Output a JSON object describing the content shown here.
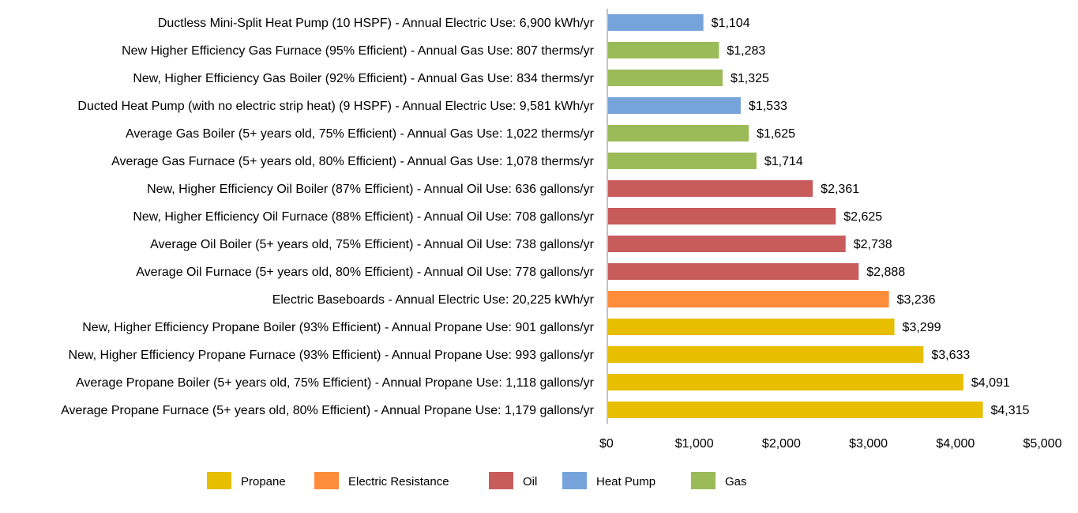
{
  "chart_data": {
    "type": "bar",
    "orientation": "horizontal",
    "title": "",
    "xlabel": "",
    "ylabel": "",
    "xlim": [
      0,
      5000
    ],
    "xticks": [
      0,
      1000,
      2000,
      3000,
      4000,
      5000
    ],
    "xtick_labels": [
      "$0",
      "$1,000",
      "$2,000",
      "$3,000",
      "$4,000",
      "$5,000"
    ],
    "grid": false,
    "legend_position": "bottom",
    "categories": [
      "Ductless Mini-Split Heat Pump (10 HSPF) - Annual Electric Use: 6,900 kWh/yr",
      "New Higher Efficiency Gas Furnace (95% Efficient) - Annual Gas Use: 807 therms/yr",
      "New, Higher Efficiency Gas Boiler (92% Efficient) -  Annual Gas Use: 834 therms/yr",
      "Ducted Heat Pump (with no electric strip heat) (9 HSPF) - Annual Electric Use: 9,581 kWh/yr",
      "Average Gas Boiler (5+ years old, 75% Efficient) -  Annual Gas Use:  1,022 therms/yr",
      "Average Gas Furnace (5+ years old, 80% Efficient) - Annual Gas Use: 1,078 therms/yr",
      "New, Higher Efficiency Oil Boiler (87% Efficient) - Annual Oil Use: 636 gallons/yr",
      "New, Higher Efficiency Oil Furnace (88% Efficient) -  Annual Oil Use: 708 gallons/yr",
      "Average Oil Boiler (5+ years old, 75% Efficient) - Annual Oil Use: 738 gallons/yr",
      "Average Oil Furnace (5+ years old, 80% Efficient) - Annual Oil Use: 778 gallons/yr",
      "Electric Baseboards - Annual Electric Use: 20,225 kWh/yr",
      "New, Higher Efficiency Propane Boiler (93% Efficient) - Annual Propane Use: 901 gallons/yr",
      "New, Higher Efficiency Propane Furnace (93% Efficient) - Annual Propane Use: 993 gallons/yr",
      "Average Propane Boiler (5+ years old, 75% Efficient) - Annual Propane Use: 1,118 gallons/yr",
      "Average Propane Furnace (5+ years old, 80% Efficient) - Annual Propane Use: 1,179 gallons/yr"
    ],
    "values": [
      1104,
      1283,
      1325,
      1533,
      1625,
      1714,
      2361,
      2625,
      2738,
      2888,
      3236,
      3299,
      3633,
      4091,
      4315
    ],
    "value_labels": [
      "$1,104",
      "$1,283",
      "$1,325",
      "$1,533",
      "$1,625",
      "$1,714",
      "$2,361",
      "$2,625",
      "$2,738",
      "$2,888",
      "$3,236",
      "$3,299",
      "$3,633",
      "$4,091",
      "$4,315"
    ],
    "groups": [
      "Heat Pump",
      "Gas",
      "Gas",
      "Heat Pump",
      "Gas",
      "Gas",
      "Oil",
      "Oil",
      "Oil",
      "Oil",
      "Electric Resistance",
      "Propane",
      "Propane",
      "Propane",
      "Propane"
    ],
    "legend": [
      {
        "name": "Propane",
        "color": "#E8BE00"
      },
      {
        "name": "Electric Resistance",
        "color": "#FF8C3B"
      },
      {
        "name": "Oil",
        "color": "#C85C5B"
      },
      {
        "name": "Heat Pump",
        "color": "#76A4DA"
      },
      {
        "name": "Gas",
        "color": "#9BBB59"
      }
    ]
  }
}
